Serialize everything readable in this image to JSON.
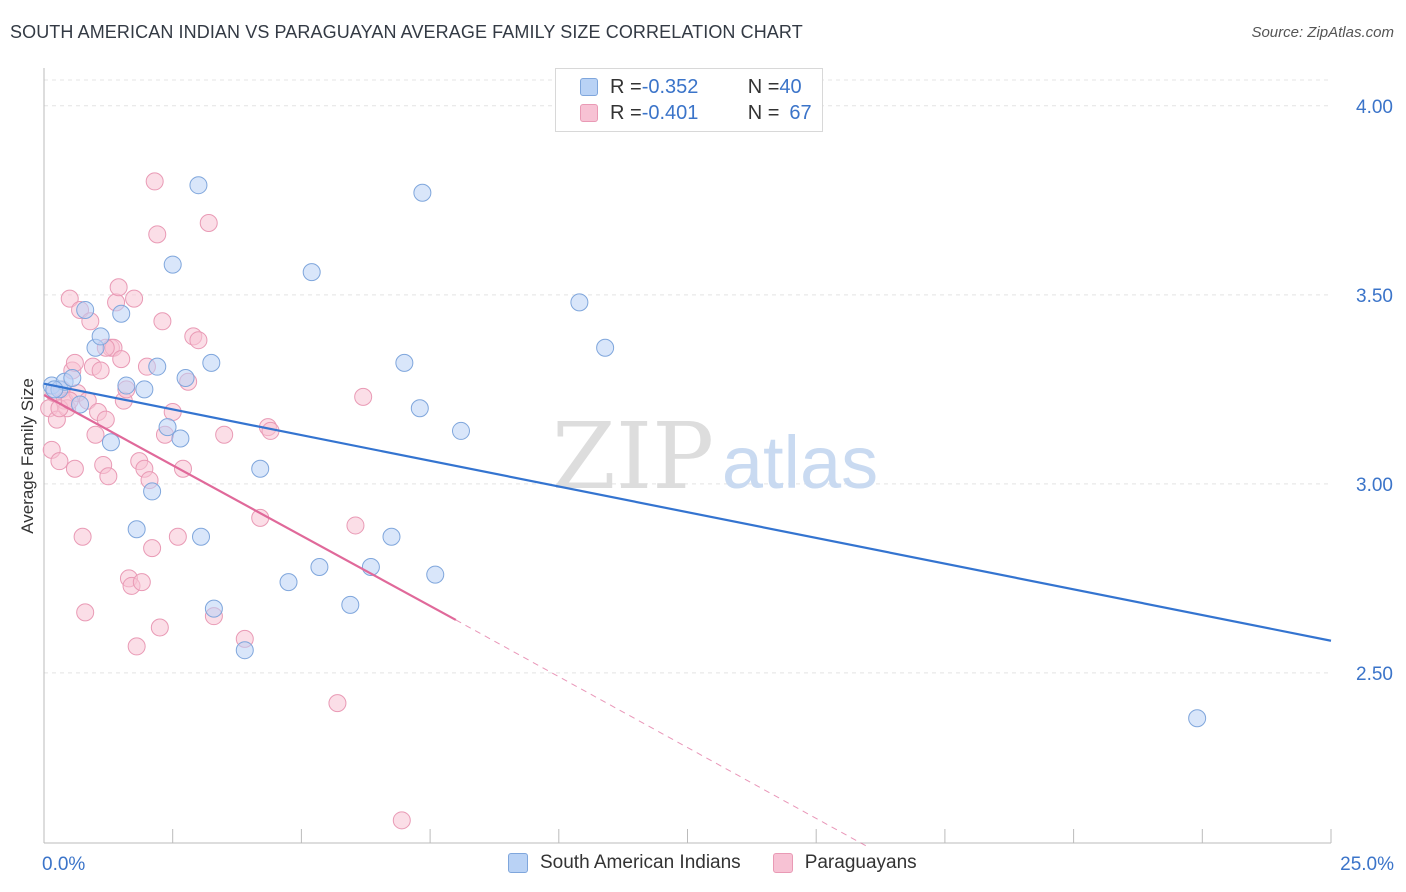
{
  "header": {
    "title": "SOUTH AMERICAN INDIAN VS PARAGUAYAN AVERAGE FAMILY SIZE CORRELATION CHART",
    "source": "Source: ZipAtlas.com"
  },
  "watermark": {
    "zip": "ZIP",
    "atlas": "atlas"
  },
  "legend_top": {
    "rows": [
      {
        "r_label": "R = ",
        "r_value": "-0.352",
        "n_label": "N = ",
        "n_value": "40"
      },
      {
        "r_label": "R = ",
        "r_value": "-0.401",
        "n_label": "N = ",
        "n_value": "67"
      }
    ]
  },
  "colors": {
    "blue_fill": "#b9d2f5",
    "blue_stroke": "#7fa6dc",
    "blue_line": "#3474d0",
    "pink_fill": "#f7c2d4",
    "pink_stroke": "#e99ab5",
    "pink_line": "#e0699a",
    "tick_label": "#3b74c9",
    "grid": "#e4e4e4"
  },
  "chart_data": {
    "type": "scatter",
    "xlabel": "",
    "ylabel": "Average Family Size",
    "xlim": [
      0,
      25
    ],
    "ylim": [
      2.05,
      4.1
    ],
    "x_tick_labels": [
      "0.0%",
      "25.0%"
    ],
    "y_ticks": [
      2.5,
      3.0,
      3.5,
      4.0
    ],
    "y_tick_labels": [
      "2.50",
      "3.00",
      "3.50",
      "4.00"
    ],
    "grid": true,
    "legend": "bottom",
    "series": [
      {
        "name": "South American Indians",
        "color": "#b9d2f5",
        "points": [
          [
            0.15,
            3.26
          ],
          [
            0.3,
            3.25
          ],
          [
            0.4,
            3.27
          ],
          [
            0.55,
            3.28
          ],
          [
            0.7,
            3.21
          ],
          [
            0.8,
            3.46
          ],
          [
            1.0,
            3.36
          ],
          [
            1.1,
            3.39
          ],
          [
            1.3,
            3.11
          ],
          [
            1.5,
            3.45
          ],
          [
            1.6,
            3.26
          ],
          [
            1.8,
            2.88
          ],
          [
            1.95,
            3.25
          ],
          [
            2.1,
            2.98
          ],
          [
            2.2,
            3.31
          ],
          [
            2.4,
            3.15
          ],
          [
            2.5,
            3.58
          ],
          [
            2.65,
            3.12
          ],
          [
            2.75,
            3.28
          ],
          [
            3.0,
            3.79
          ],
          [
            3.05,
            2.86
          ],
          [
            3.25,
            3.32
          ],
          [
            3.3,
            2.67
          ],
          [
            3.9,
            2.56
          ],
          [
            4.2,
            3.04
          ],
          [
            4.75,
            2.74
          ],
          [
            5.2,
            3.56
          ],
          [
            5.35,
            2.78
          ],
          [
            5.95,
            2.68
          ],
          [
            6.35,
            2.78
          ],
          [
            6.75,
            2.86
          ],
          [
            7.0,
            3.32
          ],
          [
            7.3,
            3.2
          ],
          [
            7.35,
            3.77
          ],
          [
            7.6,
            2.76
          ],
          [
            8.1,
            3.14
          ],
          [
            10.4,
            3.48
          ],
          [
            10.9,
            3.36
          ],
          [
            22.4,
            2.38
          ],
          [
            0.2,
            3.25
          ]
        ],
        "trendline": {
          "x": [
            0.0,
            25.0
          ],
          "y": [
            3.265,
            2.585
          ]
        }
      },
      {
        "name": "Paraguayans",
        "color": "#f7c2d4",
        "points": [
          [
            0.1,
            3.2
          ],
          [
            0.15,
            3.09
          ],
          [
            0.2,
            3.24
          ],
          [
            0.25,
            3.17
          ],
          [
            0.3,
            3.06
          ],
          [
            0.35,
            3.25
          ],
          [
            0.4,
            3.22
          ],
          [
            0.45,
            3.2
          ],
          [
            0.5,
            3.49
          ],
          [
            0.55,
            3.3
          ],
          [
            0.6,
            3.04
          ],
          [
            0.6,
            3.32
          ],
          [
            0.65,
            3.24
          ],
          [
            0.7,
            3.46
          ],
          [
            0.75,
            2.86
          ],
          [
            0.8,
            2.66
          ],
          [
            0.85,
            3.22
          ],
          [
            0.9,
            3.43
          ],
          [
            0.95,
            3.31
          ],
          [
            1.0,
            3.13
          ],
          [
            1.05,
            3.19
          ],
          [
            1.1,
            3.3
          ],
          [
            1.15,
            3.05
          ],
          [
            1.2,
            3.17
          ],
          [
            1.25,
            3.02
          ],
          [
            1.3,
            3.36
          ],
          [
            1.35,
            3.36
          ],
          [
            1.4,
            3.48
          ],
          [
            1.45,
            3.52
          ],
          [
            1.5,
            3.33
          ],
          [
            1.55,
            3.22
          ],
          [
            1.6,
            3.25
          ],
          [
            1.65,
            2.75
          ],
          [
            1.7,
            2.73
          ],
          [
            1.75,
            3.49
          ],
          [
            1.8,
            2.57
          ],
          [
            1.85,
            3.06
          ],
          [
            1.9,
            2.74
          ],
          [
            1.95,
            3.04
          ],
          [
            2.0,
            3.31
          ],
          [
            2.05,
            3.01
          ],
          [
            2.1,
            2.83
          ],
          [
            2.15,
            3.8
          ],
          [
            2.2,
            3.66
          ],
          [
            2.25,
            2.62
          ],
          [
            2.3,
            3.43
          ],
          [
            2.35,
            3.13
          ],
          [
            2.5,
            3.19
          ],
          [
            2.6,
            2.86
          ],
          [
            2.7,
            3.04
          ],
          [
            2.8,
            3.27
          ],
          [
            2.9,
            3.39
          ],
          [
            3.0,
            3.38
          ],
          [
            3.2,
            3.69
          ],
          [
            3.3,
            2.65
          ],
          [
            3.5,
            3.13
          ],
          [
            3.9,
            2.59
          ],
          [
            4.2,
            2.91
          ],
          [
            4.35,
            3.15
          ],
          [
            4.4,
            3.14
          ],
          [
            5.7,
            2.42
          ],
          [
            6.05,
            2.89
          ],
          [
            6.2,
            3.23
          ],
          [
            6.95,
            2.11
          ],
          [
            0.3,
            3.2
          ],
          [
            0.5,
            3.22
          ],
          [
            1.2,
            3.36
          ]
        ],
        "trendline": {
          "x": [
            0.0,
            8.0
          ],
          "y": [
            3.235,
            2.64
          ]
        },
        "trendline_dashed": {
          "x": [
            8.0,
            16.0
          ],
          "y": [
            2.64,
            2.04
          ]
        }
      }
    ]
  }
}
